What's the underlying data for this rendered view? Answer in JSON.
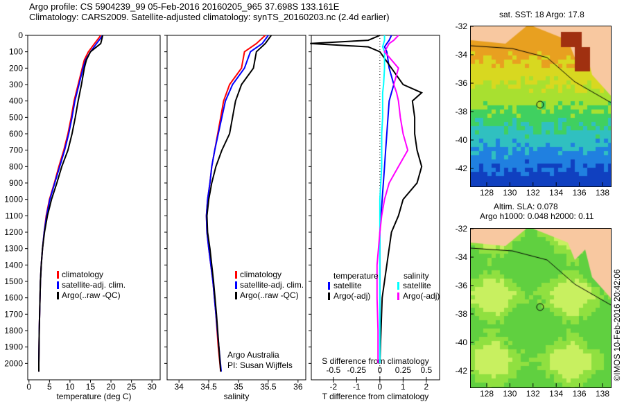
{
  "title_line1": "Argo profile: CS 5904239_99 05-Feb-2016 20160205_965 37.698S 133.161E",
  "title_line2": "Climatology: CARS2009. Satellite-adjusted climatology: synTS_20160203.nc (2.4d earlier)",
  "credit": "©IMOS 10-Feb-2016 20:42:06",
  "chart_data": [
    {
      "type": "line",
      "xlabel": "temperature (deg C)",
      "ylabel": "",
      "xlim": [
        -0.3,
        32
      ],
      "ylim": [
        2100,
        0
      ],
      "xticks": [
        0,
        5,
        10,
        15,
        20,
        25,
        30
      ],
      "yticks": [
        0,
        100,
        200,
        300,
        400,
        500,
        600,
        700,
        800,
        900,
        1000,
        1100,
        1200,
        1300,
        1400,
        1500,
        1600,
        1700,
        1800,
        1900,
        2000
      ],
      "legend": [
        "climatology",
        "satellite-adj. clim.",
        "Argo(..raw -QC)"
      ],
      "depth": [
        0,
        50,
        100,
        150,
        200,
        300,
        400,
        500,
        600,
        700,
        800,
        900,
        1000,
        1100,
        1200,
        1300,
        1400,
        1500,
        1600,
        1800,
        2000,
        2050
      ],
      "series": [
        {
          "name": "climatology",
          "color": "#ff0000",
          "values": [
            17.5,
            16,
            14.5,
            13.5,
            13,
            12,
            11,
            10.3,
            9.5,
            8.5,
            7.3,
            6.2,
            5,
            4.2,
            3.7,
            3.3,
            3,
            2.8,
            2.7,
            2.5,
            2.4,
            2.4
          ]
        },
        {
          "name": "satellite-adj. clim.",
          "color": "#0000ff",
          "values": [
            18,
            16.5,
            15,
            13.8,
            13.2,
            12.2,
            11.2,
            10.5,
            9.7,
            8.7,
            7.5,
            6.3,
            5.1,
            4.3,
            3.7,
            3.3,
            3,
            2.8,
            2.7,
            2.5,
            2.4,
            2.4
          ]
        },
        {
          "name": "Argo(..raw -QC)",
          "color": "#000000",
          "values": [
            18,
            17.5,
            15,
            14,
            13.5,
            12.8,
            12,
            11.3,
            10.5,
            9.5,
            8,
            6.8,
            5.5,
            4.5,
            3.8,
            3.3,
            3,
            2.8,
            2.7,
            2.5,
            2.4,
            2.4
          ]
        }
      ]
    },
    {
      "type": "line",
      "xlabel": "salinity",
      "xlim": [
        33.8,
        36.13
      ],
      "ylim": [
        2100,
        0
      ],
      "xticks": [
        34,
        34.5,
        35,
        35.5,
        36
      ],
      "legend": [
        "climatology",
        "satellite-adj. clim.",
        "Argo(..raw -QC)"
      ],
      "annotation": [
        "Argo Australia",
        "PI: Susan Wijffels"
      ],
      "depth": [
        0,
        50,
        100,
        200,
        300,
        400,
        500,
        600,
        700,
        800,
        900,
        1000,
        1100,
        1200,
        1300,
        1500,
        1700,
        1900,
        2050
      ],
      "series": [
        {
          "name": "climatology",
          "color": "#ff0000",
          "values": [
            35.45,
            35.3,
            35.1,
            35.05,
            34.85,
            34.75,
            34.7,
            34.65,
            34.6,
            34.55,
            34.52,
            34.48,
            34.46,
            34.47,
            34.5,
            34.57,
            34.62,
            34.66,
            34.7
          ]
        },
        {
          "name": "satellite-adj. clim.",
          "color": "#0000ff",
          "values": [
            35.5,
            35.4,
            35.2,
            35.1,
            34.9,
            34.78,
            34.72,
            34.66,
            34.6,
            34.55,
            34.52,
            34.48,
            34.46,
            34.47,
            34.5,
            34.57,
            34.62,
            34.67,
            34.71
          ]
        },
        {
          "name": "Argo(..raw -QC)",
          "color": "#000000",
          "values": [
            35.55,
            35.45,
            35.3,
            35.25,
            35.05,
            34.95,
            34.9,
            34.85,
            34.72,
            34.62,
            34.55,
            34.5,
            34.47,
            34.48,
            34.52,
            34.58,
            34.63,
            34.67,
            34.7
          ]
        }
      ]
    },
    {
      "type": "line",
      "xlabel": "T difference from climatology",
      "xlabel2": "S difference from climatology",
      "xlim": [
        -2.95,
        2.57
      ],
      "ylim": [
        2100,
        0
      ],
      "xticks": [
        -2,
        -1,
        0,
        1,
        2
      ],
      "xticks2": [
        "-0.5",
        "-0.25",
        "0",
        "0.25",
        "0.5"
      ],
      "xticks2_values": [
        -0.5,
        -0.25,
        0,
        0.25,
        0.5
      ],
      "legend_temperature": "temperature",
      "legend_salinity": "salinity",
      "legend": [
        "satellite",
        "Argo(-adj)",
        "satellite",
        "Argo(-adj)"
      ],
      "depth": [
        0,
        30,
        50,
        70,
        100,
        200,
        300,
        350,
        400,
        500,
        600,
        700,
        800,
        900,
        1000,
        1100,
        1200,
        1400,
        1600,
        1800,
        2000
      ],
      "series": [
        {
          "name": "T satellite",
          "color": "#0000ff",
          "scale": "T",
          "values": [
            0.5,
            0.4,
            0.3,
            0.2,
            0.3,
            0.4,
            0.6,
            0.5,
            0.4,
            0.35,
            0.3,
            0.25,
            0.2,
            0.15,
            0.1,
            0.05,
            0,
            0,
            0,
            0,
            0
          ]
        },
        {
          "name": "T Argo(-adj)",
          "color": "#000000",
          "scale": "T",
          "values": [
            0,
            -0.5,
            -3,
            -0.5,
            0,
            0.5,
            1,
            1.8,
            1.4,
            1.5,
            1.5,
            1.6,
            1.8,
            1.6,
            1,
            0.8,
            0.5,
            0.3,
            0.1,
            0.05,
            0
          ]
        },
        {
          "name": "S satellite",
          "color": "#00ffff",
          "scale": "S",
          "values": [
            0.05,
            0.05,
            0.04,
            0.03,
            0.05,
            0.05,
            0.04,
            0.03,
            0.03,
            0.03,
            0.02,
            0.02,
            0.02,
            0.01,
            0,
            0,
            0,
            0,
            0,
            0,
            0
          ]
        },
        {
          "name": "S Argo(-adj)",
          "color": "#ff00ff",
          "scale": "S",
          "values": [
            0.2,
            0.15,
            0.1,
            0.08,
            0.05,
            0.2,
            0.15,
            0.18,
            0.2,
            0.22,
            0.25,
            0.3,
            0.2,
            0.1,
            0.05,
            0.02,
            0,
            -0.03,
            -0.03,
            -0.02,
            -0.02
          ]
        }
      ]
    }
  ],
  "map_sst": {
    "title": "sat. SST: 18 Argo: 17.8",
    "lat_ticks": [
      "-32",
      "-34",
      "-36",
      "-38",
      "-40",
      "-42"
    ],
    "lon_ticks": [
      "128",
      "130",
      "132",
      "134",
      "136",
      "138"
    ]
  },
  "map_sla": {
    "title1": "Altim. SLA: 0.078",
    "title2": "Argo h1000: 0.048 h2000: 0.11",
    "lat_ticks": [
      "-32",
      "-34",
      "-36",
      "-38",
      "-40",
      "-42"
    ],
    "lon_ticks": [
      "128",
      "130",
      "132",
      "134",
      "136",
      "138"
    ]
  }
}
